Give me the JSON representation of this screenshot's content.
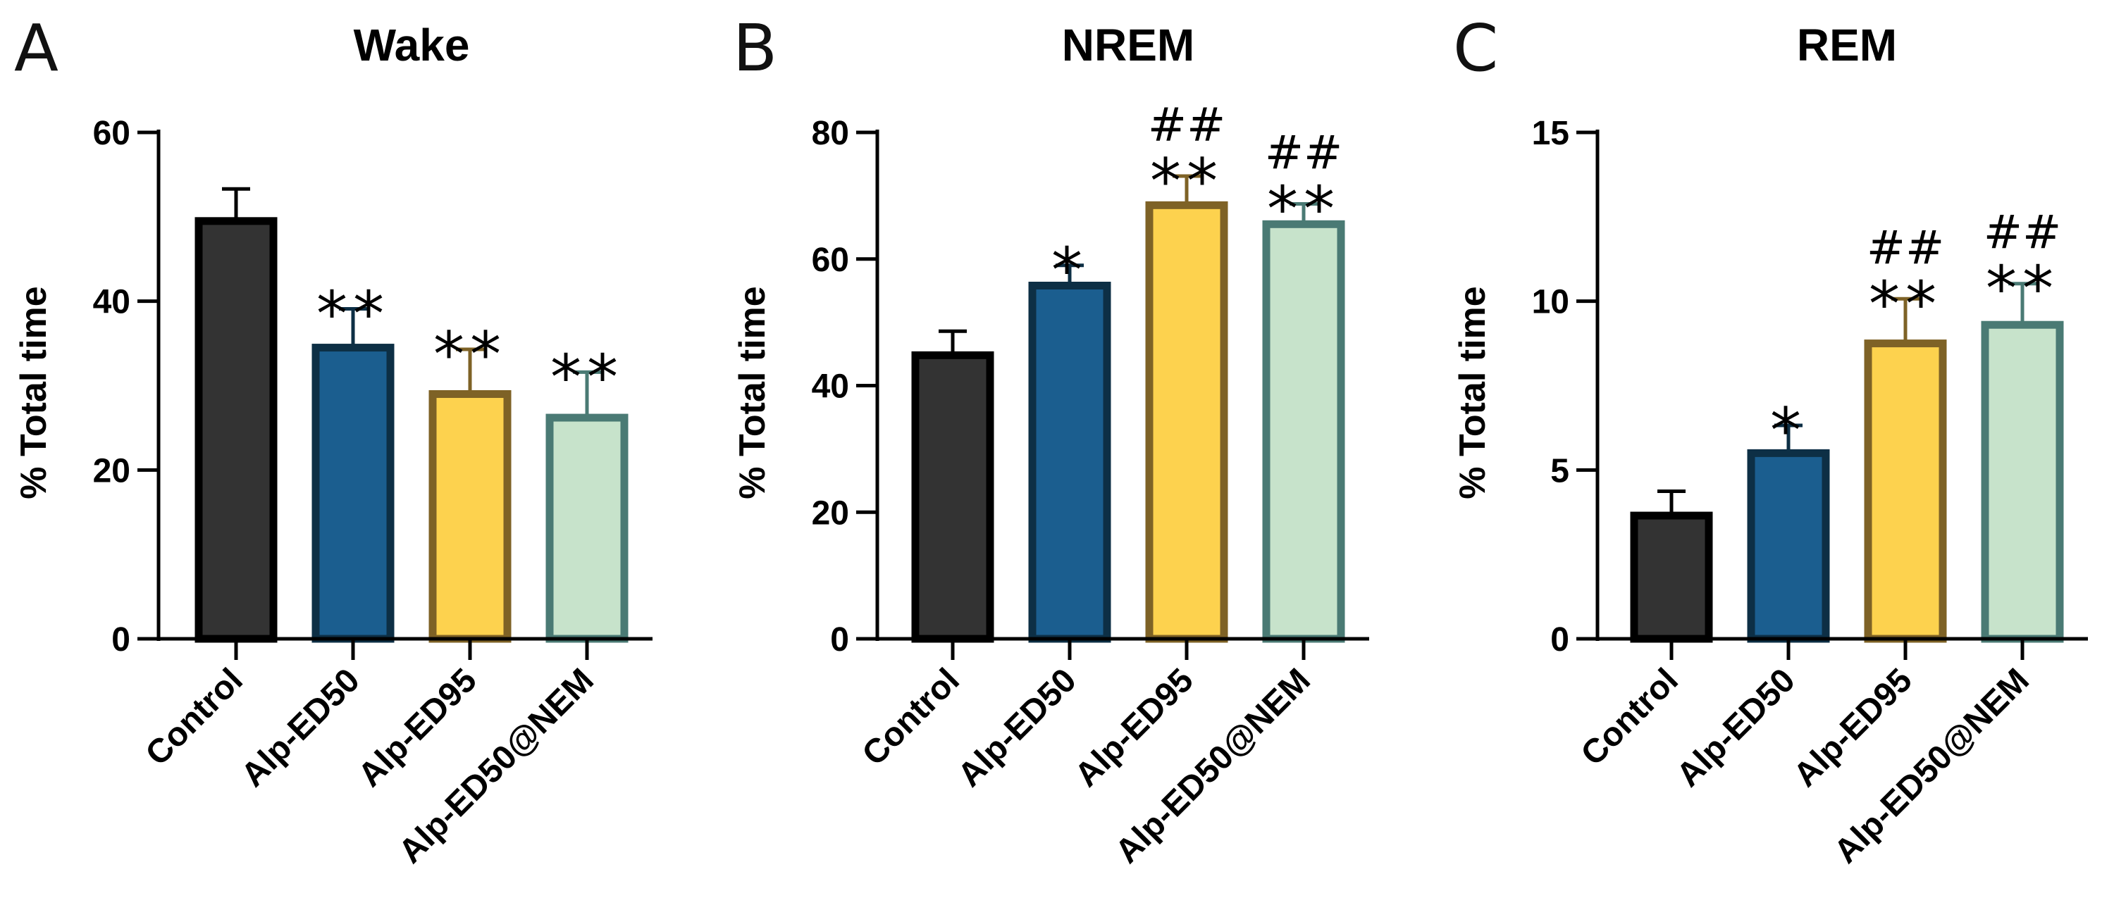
{
  "categories": [
    "Control",
    "Alp-ED50",
    "Alp-ED95",
    "Alp-ED50@NEM"
  ],
  "colors": {
    "fill": [
      "#333333",
      "#1b5e8f",
      "#fdd24e",
      "#c7e3cb"
    ],
    "stroke": [
      "#000000",
      "#0d2f45",
      "#7e6226",
      "#4a7a74"
    ]
  },
  "chart_data": [
    {
      "type": "bar",
      "letter": "A",
      "title": "Wake",
      "ylabel": "% Total time",
      "ylim": [
        0,
        60
      ],
      "yticks": [
        0,
        20,
        40,
        60
      ],
      "categories": [
        "Control",
        "Alp-ED50",
        "Alp-ED95",
        "Alp-ED50@NEM"
      ],
      "values": [
        49.5,
        34.5,
        29.0,
        26.2
      ],
      "errors": [
        3.8,
        4.6,
        5.3,
        5.4
      ],
      "stars": [
        "",
        "**",
        "**",
        "**"
      ],
      "hashes": [
        "",
        "",
        "",
        ""
      ]
    },
    {
      "type": "bar",
      "letter": "B",
      "title": "NREM",
      "ylabel": "% Total time",
      "ylim": [
        0,
        80
      ],
      "yticks": [
        0,
        20,
        40,
        60,
        80
      ],
      "categories": [
        "Control",
        "Alp-ED50",
        "Alp-ED95",
        "Alp-ED50@NEM"
      ],
      "values": [
        44.8,
        55.8,
        68.5,
        65.5
      ],
      "errors": [
        3.8,
        3.2,
        4.6,
        3.2
      ],
      "stars": [
        "",
        "*",
        "**",
        "**"
      ],
      "hashes": [
        "",
        "",
        "##",
        "##"
      ]
    },
    {
      "type": "bar",
      "letter": "C",
      "title": "REM",
      "ylabel": "% Total time",
      "ylim": [
        0,
        15
      ],
      "yticks": [
        0,
        5,
        10,
        15
      ],
      "categories": [
        "Control",
        "Alp-ED50",
        "Alp-ED95",
        "Alp-ED50@NEM"
      ],
      "values": [
        3.65,
        5.5,
        8.75,
        9.3
      ],
      "errors": [
        0.72,
        0.82,
        1.32,
        1.22
      ],
      "stars": [
        "",
        "*",
        "**",
        "**"
      ],
      "hashes": [
        "",
        "",
        "##",
        "##"
      ]
    }
  ]
}
